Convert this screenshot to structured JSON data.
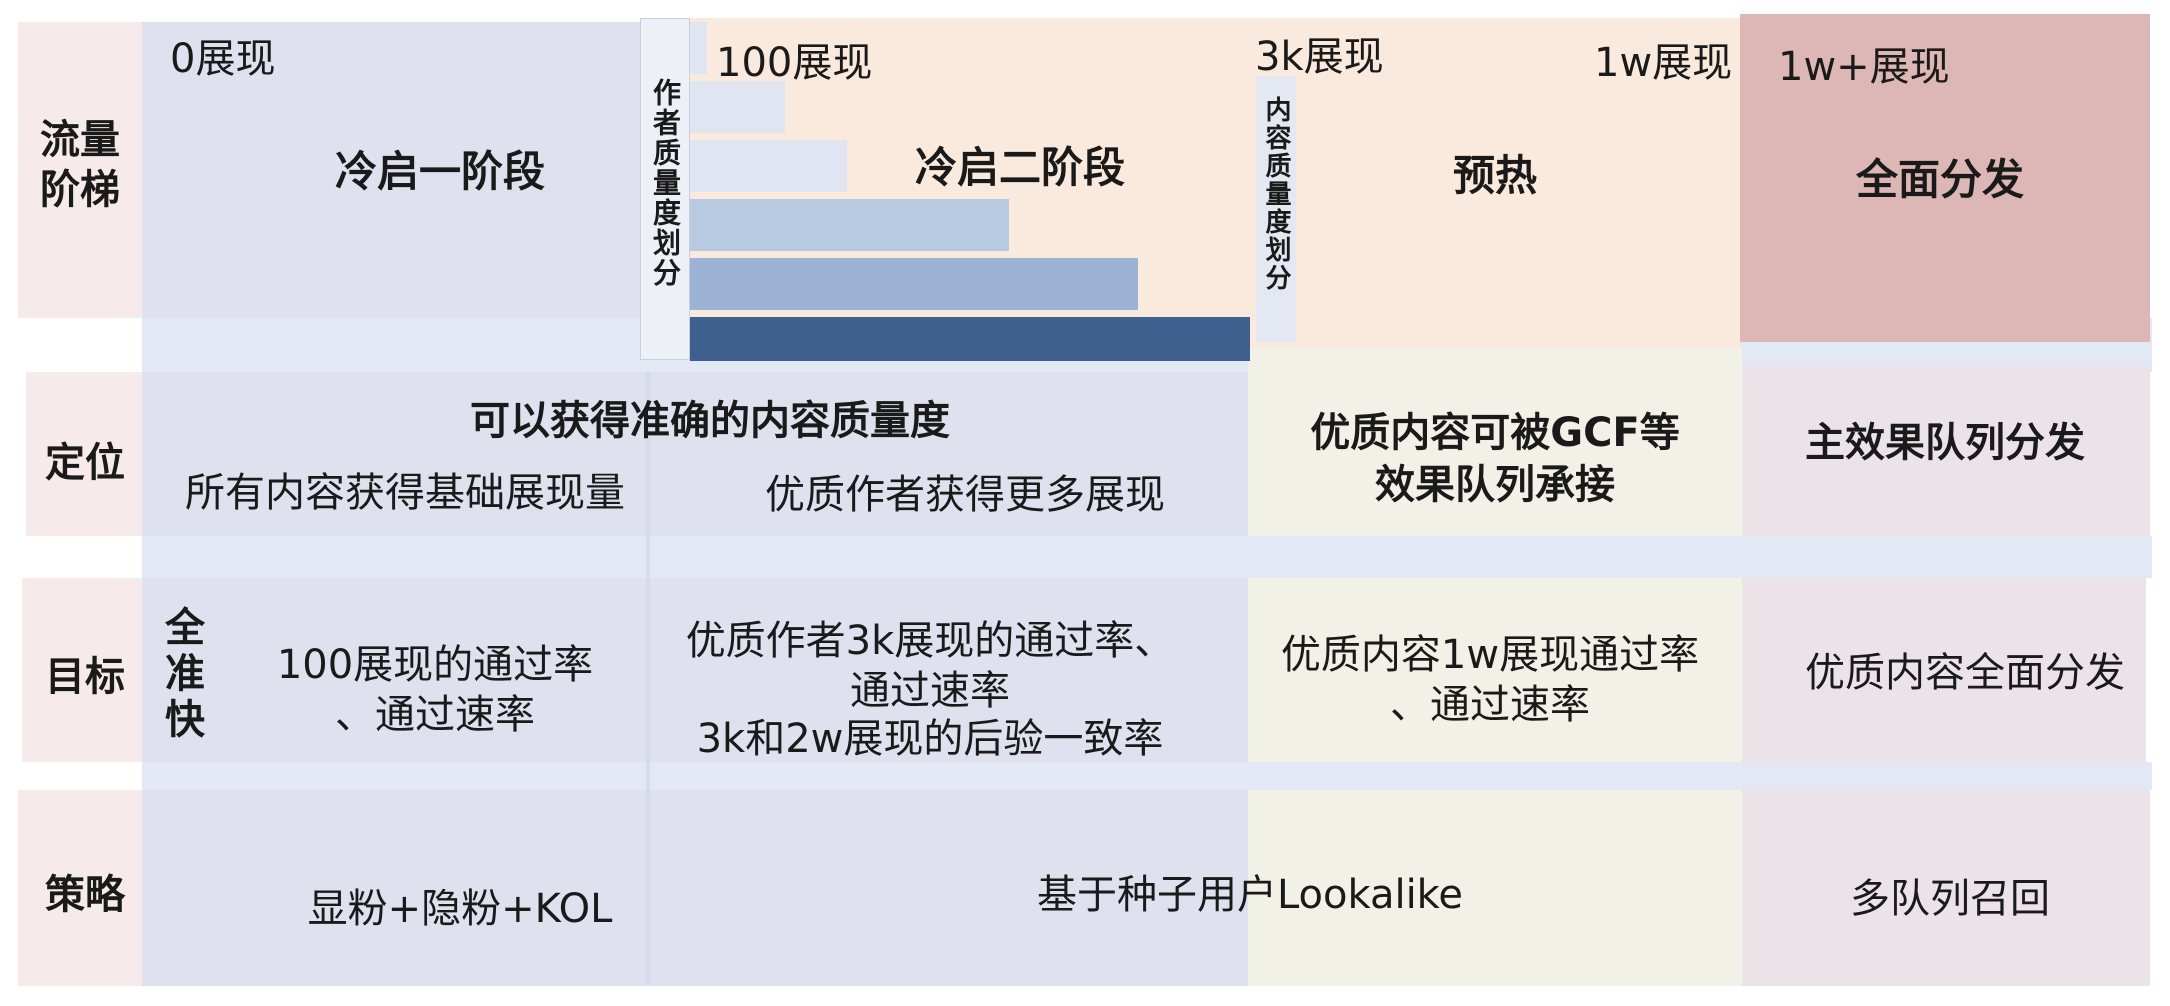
{
  "row_labels": {
    "traffic": "流量阶梯",
    "position": "定位",
    "goal": "目标",
    "strategy": "策略"
  },
  "milestones": [
    "0展现",
    "100展现",
    "3k展现",
    "1w展现",
    "1w+展现"
  ],
  "stages": {
    "cold1": "冷启一阶段",
    "cold2": "冷启二阶段",
    "preheat": "预热",
    "full": "全面分发"
  },
  "vertical_labels": {
    "author_quality": "作者质量度划分",
    "content_quality": "内容质量度划分"
  },
  "author_bars": {
    "levels": [
      0.03,
      0.17,
      0.28,
      0.57,
      0.8,
      1.0
    ],
    "colors": [
      "#dfe6f1",
      "#dfe6f1",
      "#dfe6f1",
      "#b8c9e2",
      "#9db3d6",
      "#3f5f8e"
    ]
  },
  "position": {
    "span_title": "可以获得准确的内容质量度",
    "cold1": "所有内容获得基础展现量",
    "cold2": "优质作者获得更多展现",
    "preheat_line1": "优质内容可被GCF等",
    "preheat_line2": "效果队列承接",
    "full": "主效果队列分发"
  },
  "goal": {
    "side_label": "全准快",
    "cold1_line1": "100展现的通过率",
    "cold1_line2": "、通过速率",
    "cold2_line1": "优质作者3k展现的通过率、",
    "cold2_line2": "通过速率",
    "cold2_line3": "3k和2w展现的后验一致率",
    "preheat_line1": "优质内容1w展现通过率",
    "preheat_line2": "、通过速率",
    "full": "优质内容全面分发"
  },
  "strategy": {
    "cold1": "显粉+隐粉+KOL",
    "cold2_preheat": "基于种子用户Lookalike",
    "full": "多队列召回"
  },
  "colors": {
    "label_bg": "#f6eaea",
    "cold_bg": "#dfe1ee",
    "cold2_top_bg": "#fae9dd",
    "preheat_bg": "#f2f1e8",
    "full_top_bg": "#ddb6b6",
    "full_bg": "#ebe3e8",
    "band_blue": "#e3e9f4"
  }
}
